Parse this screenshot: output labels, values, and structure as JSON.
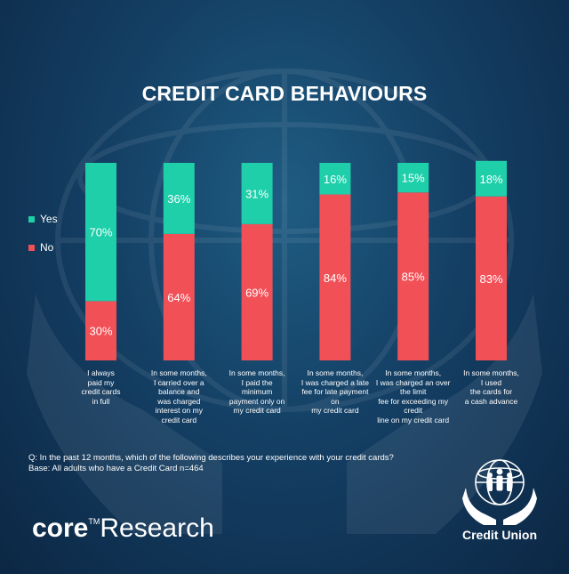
{
  "title": "CREDIT CARD BEHAVIOURS",
  "legend": {
    "yes": "Yes",
    "no": "No"
  },
  "colors": {
    "yes": "#1fcfaa",
    "no": "#f25057"
  },
  "question_lines": [
    "Q: In the past 12 months, which of the following describes your experience with your credit cards?",
    "Base: All adults  who have a Credit Card n=464"
  ],
  "brand": {
    "core": "core",
    "tm": "TM",
    "research": "Research"
  },
  "credit_union": "Credit Union",
  "chart_data": {
    "type": "bar",
    "stacked": true,
    "categories": [
      "I always\npaid my\ncredit cards\nin full",
      "In some months,\nI carried over a\nbalance and\nwas charged\ninterest on my\ncredit card",
      "In some months,\nI paid the\nminimum\npayment only on\nmy credit card",
      "In some months,\nI was charged a late\nfee for late payment\non\nmy credit card",
      "In some months,\nI was charged an over\nthe limit\nfee for exceeding my\ncredit\nline on my credit card",
      "In some months,\nI used\nthe cards for\na cash advance"
    ],
    "series": [
      {
        "name": "No",
        "values": [
          30,
          64,
          69,
          84,
          85,
          83
        ]
      },
      {
        "name": "Yes",
        "values": [
          70,
          36,
          31,
          16,
          15,
          18
        ]
      }
    ],
    "value_suffix": "%",
    "ylim": [
      0,
      100
    ],
    "legend_position": "left",
    "grid": false
  }
}
